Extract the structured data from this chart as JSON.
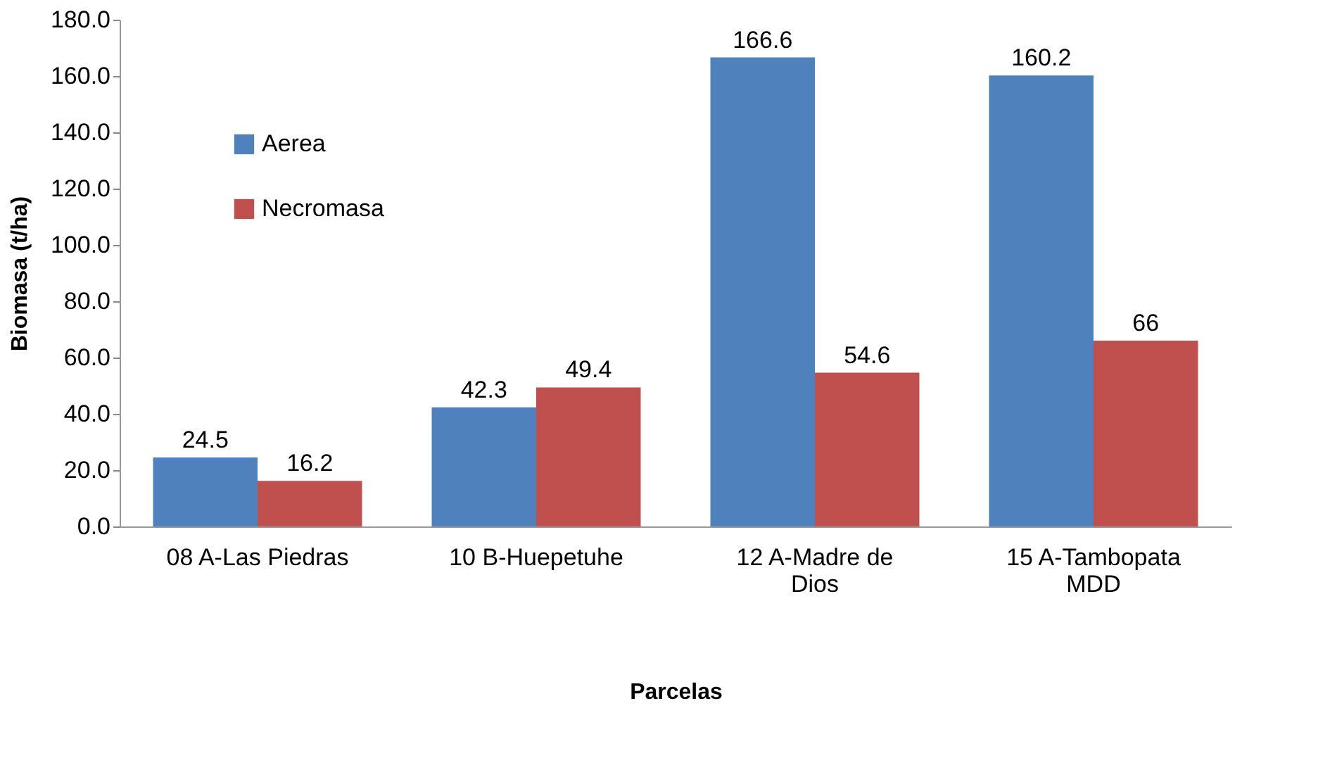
{
  "chart_data": {
    "type": "bar",
    "xlabel": "Parcelas",
    "ylabel": "Biomasa (t/ha)",
    "categories": [
      "08 A-Las Piedras",
      "10 B-Huepetuhe",
      "12 A-Madre de Dios",
      "15 A-Tambopata MDD"
    ],
    "series": [
      {
        "name": "Aerea",
        "color": "#4f81bd",
        "values": [
          24.5,
          42.3,
          166.6,
          160.2
        ]
      },
      {
        "name": "Necromasa",
        "color": "#c0504d",
        "values": [
          16.2,
          49.4,
          54.6,
          66
        ]
      }
    ],
    "ylim": [
      0,
      180
    ],
    "yticks": [
      {
        "value": 0,
        "label": "0.0"
      },
      {
        "value": 20,
        "label": "20.0"
      },
      {
        "value": 40,
        "label": "40.0"
      },
      {
        "value": 60,
        "label": "60.0"
      },
      {
        "value": 80,
        "label": "80.0"
      },
      {
        "value": 100,
        "label": "100.0"
      },
      {
        "value": 120,
        "label": "120.0"
      },
      {
        "value": 140,
        "label": "140.0"
      },
      {
        "value": 160,
        "label": "160.0"
      },
      {
        "value": 180,
        "label": "180.0"
      }
    ],
    "data_labels": true,
    "legend": "top left",
    "grid": false
  }
}
